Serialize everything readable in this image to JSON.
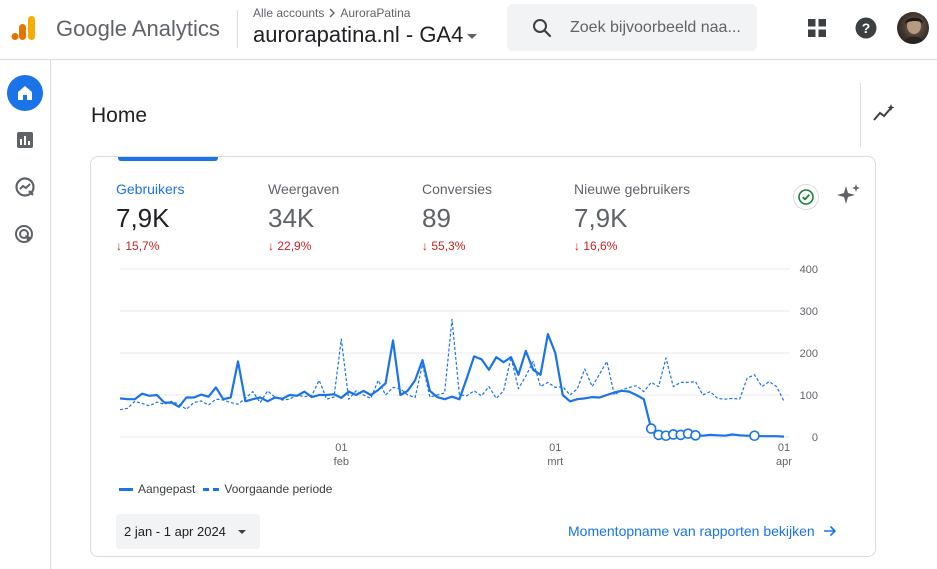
{
  "header": {
    "product_name": "Google Analytics",
    "breadcrumb": [
      "Alle accounts",
      "AuroraPatina"
    ],
    "property_name": "aurorapatina.nl - GA4",
    "search_placeholder": "Zoek bijvoorbeeld naa...",
    "icons": [
      "analytics-logo-icon",
      "search-icon",
      "apps-grid-icon",
      "help-icon",
      "avatar"
    ]
  },
  "sidebar": {
    "items": [
      {
        "name": "home",
        "icon": "home-icon",
        "active": true
      },
      {
        "name": "reports",
        "icon": "bar-chart-icon",
        "active": false
      },
      {
        "name": "explore",
        "icon": "explore-icon",
        "active": false
      },
      {
        "name": "advertising",
        "icon": "advertising-icon",
        "active": false
      }
    ]
  },
  "page": {
    "title": "Home"
  },
  "card": {
    "metrics": [
      {
        "label": "Gebruikers",
        "value": "7,9K",
        "delta": "15,7%",
        "active": true
      },
      {
        "label": "Weergaven",
        "value": "34K",
        "delta": "22,9%",
        "active": false
      },
      {
        "label": "Conversies",
        "value": "89",
        "delta": "55,3%",
        "active": false
      },
      {
        "label": "Nieuwe gebruikers",
        "value": "7,9K",
        "delta": "16,6%",
        "active": false
      }
    ],
    "legend": {
      "current": "Aangepast",
      "previous": "Voorgaande periode"
    },
    "date_range": "2 jan - 1 apr 2024",
    "snapshot_link": "Momentopname van rapporten bekijken"
  },
  "colors": {
    "accent": "#1a73e8",
    "negative": "#c5221f",
    "text_secondary": "#5f6368"
  },
  "chart_data": {
    "type": "line",
    "y_ticks": [
      "0",
      "100",
      "200",
      "300",
      "400"
    ],
    "ylim": [
      0,
      400
    ],
    "x_ticks": [
      {
        "day": "01",
        "month": "feb",
        "index": 30
      },
      {
        "day": "01",
        "month": "mrt",
        "index": 59
      },
      {
        "day": "01",
        "month": "apr",
        "index": 90
      }
    ],
    "series": [
      {
        "name": "Aangepast",
        "style": "solid",
        "values": [
          92,
          90,
          90,
          103,
          98,
          100,
          82,
          82,
          72,
          94,
          94,
          101,
          96,
          118,
          90,
          94,
          180,
          85,
          90,
          94,
          85,
          94,
          91,
          100,
          98,
          108,
          95,
          100,
          100,
          102,
          93,
          108,
          100,
          110,
          100,
          112,
          128,
          230,
          100,
          110,
          135,
          183,
          110,
          95,
          90,
          96,
          90,
          140,
          192,
          185,
          160,
          190,
          178,
          190,
          148,
          205,
          160,
          148,
          245,
          200,
          100,
          85,
          90,
          92,
          95,
          94,
          100,
          106,
          110,
          108,
          100,
          90,
          20,
          5,
          3,
          6,
          5,
          8,
          4,
          3,
          5,
          4,
          3,
          6,
          4,
          3,
          3,
          2,
          2,
          2,
          1
        ]
      },
      {
        "name": "Voorgaande periode",
        "style": "dashed",
        "values": [
          65,
          68,
          85,
          80,
          74,
          83,
          78,
          85,
          78,
          66,
          82,
          86,
          76,
          90,
          88,
          82,
          78,
          92,
          108,
          82,
          110,
          95,
          88,
          90,
          100,
          96,
          99,
          135,
          90,
          95,
          233,
          90,
          110,
          100,
          92,
          135,
          100,
          118,
          115,
          100,
          94,
          173,
          95,
          100,
          105,
          280,
          100,
          98,
          110,
          98,
          120,
          92,
          110,
          190,
          115,
          145,
          180,
          120,
          130,
          118,
          120,
          100,
          115,
          162,
          120,
          150,
          180,
          100,
          112,
          118,
          122,
          108,
          130,
          120,
          188,
          120,
          130,
          130,
          132,
          100,
          108,
          92,
          90,
          92,
          90,
          140,
          148,
          120,
          132,
          120,
          85
        ]
      }
    ]
  }
}
